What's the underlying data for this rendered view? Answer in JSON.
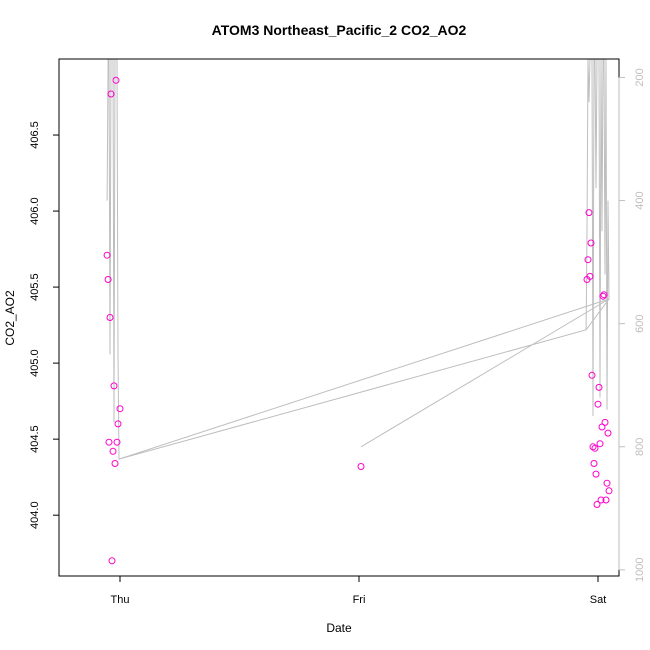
{
  "chart_data": {
    "type": "scatter",
    "title": "ATOM3 Northeast_Pacific_2 CO2_AO2",
    "xlabel": "Date",
    "ylabel": "CO2_AO2",
    "x_ticks": [
      "Thu",
      "Fri",
      "Sat"
    ],
    "y_ticks": [
      "404.0",
      "404.5",
      "405.0",
      "405.5",
      "406.0",
      "406.5"
    ],
    "ylim": [
      403.6,
      407.0
    ],
    "y2_ticks": [
      "200",
      "400",
      "600",
      "800",
      "1000"
    ],
    "y2lim": [
      1010,
      170
    ],
    "y2_reversed": true,
    "point_color": "#ff00cc",
    "line_color": "#bebebe",
    "series": [
      {
        "values": [
          {
            "x": "Thu 00:00",
            "y": 404.7
          },
          {
            "x": "Wed 22:42",
            "y": 405.71
          },
          {
            "x": "Wed 22:48",
            "y": 405.55
          },
          {
            "x": "Wed 22:54",
            "y": 404.48
          },
          {
            "x": "Wed 23:00",
            "y": 405.3
          },
          {
            "x": "Wed 23:06",
            "y": 406.77
          },
          {
            "x": "Wed 23:12",
            "y": 403.7
          },
          {
            "x": "Wed 23:18",
            "y": 404.42
          },
          {
            "x": "Wed 23:24",
            "y": 404.85
          },
          {
            "x": "Wed 23:30",
            "y": 404.34
          },
          {
            "x": "Wed 23:36",
            "y": 406.86
          },
          {
            "x": "Wed 23:42",
            "y": 404.48
          },
          {
            "x": "Wed 23:48",
            "y": 404.6
          },
          {
            "x": "Fri 00:12",
            "y": 404.32
          },
          {
            "x": "Fri 22:54",
            "y": 405.55
          },
          {
            "x": "Fri 23:00",
            "y": 405.68
          },
          {
            "x": "Fri 23:06",
            "y": 405.99
          },
          {
            "x": "Fri 23:12",
            "y": 405.57
          },
          {
            "x": "Fri 23:18",
            "y": 405.79
          },
          {
            "x": "Fri 23:24",
            "y": 404.92
          },
          {
            "x": "Fri 23:30",
            "y": 404.45
          },
          {
            "x": "Fri 23:36",
            "y": 404.34
          },
          {
            "x": "Fri 23:42",
            "y": 404.44
          },
          {
            "x": "Fri 23:48",
            "y": 404.27
          },
          {
            "x": "Fri 23:54",
            "y": 404.07
          },
          {
            "x": "Sat 00:00",
            "y": 404.73
          },
          {
            "x": "Sat 00:06",
            "y": 404.84
          },
          {
            "x": "Sat 00:12",
            "y": 404.47
          },
          {
            "x": "Sat 00:18",
            "y": 404.1
          },
          {
            "x": "Sat 00:24",
            "y": 404.58
          },
          {
            "x": "Sat 00:30",
            "y": 405.44
          },
          {
            "x": "Sat 00:36",
            "y": 405.45
          },
          {
            "x": "Sat 00:42",
            "y": 404.61
          },
          {
            "x": "Sat 00:48",
            "y": 404.1
          },
          {
            "x": "Sat 00:54",
            "y": 404.21
          },
          {
            "x": "Sat 01:00",
            "y": 404.54
          },
          {
            "x": "Sat 01:06",
            "y": 404.16
          }
        ]
      },
      {
        "axis": "right",
        "values": [
          {
            "x": "Wed 22:42",
            "y": 400
          },
          {
            "x": "Wed 22:48",
            "y": 170
          },
          {
            "x": "Wed 22:54",
            "y": 170
          },
          {
            "x": "Wed 23:00",
            "y": 650
          },
          {
            "x": "Wed 23:06",
            "y": 170
          },
          {
            "x": "Wed 23:12",
            "y": 170
          },
          {
            "x": "Wed 23:18",
            "y": 170
          },
          {
            "x": "Wed 23:24",
            "y": 760
          },
          {
            "x": "Wed 23:30",
            "y": 170
          },
          {
            "x": "Wed 23:36",
            "y": 170
          },
          {
            "x": "Wed 23:42",
            "y": 170
          },
          {
            "x": "Wed 23:48",
            "y": 650
          },
          {
            "x": "Wed 23:54",
            "y": 820
          },
          {
            "x": "Fri 22:48",
            "y": 610
          },
          {
            "x": "Fri 22:54",
            "y": 450
          },
          {
            "x": "Fri 23:00",
            "y": 170
          },
          {
            "x": "Fri 23:06",
            "y": 240
          },
          {
            "x": "Fri 23:12",
            "y": 170
          },
          {
            "x": "Fri 23:18",
            "y": 170
          },
          {
            "x": "Fri 23:24",
            "y": 170
          },
          {
            "x": "Fri 23:30",
            "y": 750
          },
          {
            "x": "Fri 23:36",
            "y": 170
          },
          {
            "x": "Fri 23:42",
            "y": 170
          },
          {
            "x": "Fri 23:48",
            "y": 380
          },
          {
            "x": "Fri 23:54",
            "y": 170
          },
          {
            "x": "Sat 00:00",
            "y": 170
          },
          {
            "x": "Sat 00:06",
            "y": 170
          },
          {
            "x": "Sat 00:12",
            "y": 720
          },
          {
            "x": "Sat 00:18",
            "y": 170
          },
          {
            "x": "Sat 00:24",
            "y": 450
          },
          {
            "x": "Sat 00:30",
            "y": 170
          },
          {
            "x": "Sat 00:36",
            "y": 170
          },
          {
            "x": "Sat 00:42",
            "y": 520
          },
          {
            "x": "Sat 00:48",
            "y": 170
          },
          {
            "x": "Sat 00:54",
            "y": 740
          },
          {
            "x": "Sat 01:00",
            "y": 400
          },
          {
            "x": "Sat 01:06",
            "y": 560
          },
          {
            "x": "Wed 23:54",
            "y": 820
          },
          {
            "x": "Fri 22:48",
            "y": 610
          },
          {
            "x": "Sat 01:06",
            "y": 560
          },
          {
            "x": "Fri 00:12",
            "y": 800
          }
        ]
      }
    ],
    "grid": false
  }
}
